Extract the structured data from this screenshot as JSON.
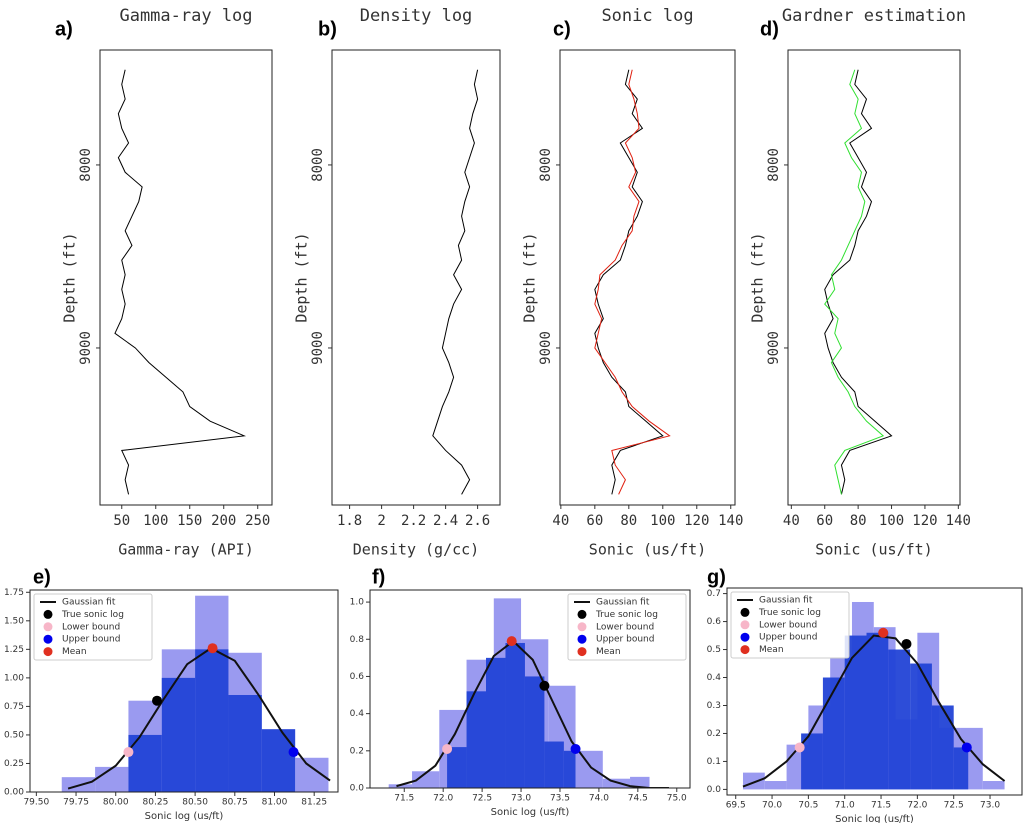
{
  "chart_data": [
    {
      "type": "line",
      "label": "a)",
      "title": "Gamma-ray log",
      "x_label": "Gamma-ray (API)",
      "y_label": "Depth (ft)",
      "xlim": [
        18,
        271
      ],
      "xticks": [
        50,
        100,
        150,
        200,
        250
      ],
      "ylim": [
        9858,
        7372
      ],
      "yticks": [
        8000,
        9000
      ],
      "y": [
        7480,
        7560,
        7640,
        7720,
        7800,
        7880,
        7960,
        8040,
        8120,
        8200,
        8280,
        8360,
        8440,
        8520,
        8600,
        8680,
        8760,
        8840,
        8920,
        9000,
        9080,
        9160,
        9240,
        9320,
        9400,
        9480,
        9560,
        9640,
        9720,
        9800
      ],
      "series": [
        {
          "color": "#000000",
          "values": [
            55,
            50,
            55,
            45,
            50,
            60,
            45,
            55,
            80,
            75,
            65,
            55,
            65,
            50,
            55,
            50,
            55,
            50,
            40,
            70,
            90,
            115,
            140,
            150,
            180,
            230,
            50,
            60,
            55,
            60
          ]
        }
      ]
    },
    {
      "type": "line",
      "label": "b)",
      "title": "Density log",
      "x_label": "Density (g/cc)",
      "y_label": "Depth (ft)",
      "xlim": [
        1.69,
        2.74
      ],
      "xticks": [
        1.8,
        2,
        2.2,
        2.4,
        2.6
      ],
      "ylim": [
        9858,
        7372
      ],
      "yticks": [
        8000,
        9000
      ],
      "y": [
        7480,
        7560,
        7640,
        7720,
        7800,
        7880,
        7960,
        8040,
        8120,
        8200,
        8280,
        8360,
        8440,
        8520,
        8600,
        8680,
        8760,
        8840,
        8920,
        9000,
        9080,
        9160,
        9240,
        9320,
        9400,
        9480,
        9560,
        9640,
        9720,
        9800
      ],
      "series": [
        {
          "color": "#000000",
          "values": [
            2.6,
            2.58,
            2.6,
            2.57,
            2.55,
            2.58,
            2.55,
            2.52,
            2.55,
            2.52,
            2.5,
            2.52,
            2.48,
            2.5,
            2.45,
            2.5,
            2.45,
            2.42,
            2.4,
            2.38,
            2.42,
            2.45,
            2.42,
            2.38,
            2.35,
            2.32,
            2.4,
            2.5,
            2.55,
            2.5
          ]
        }
      ]
    },
    {
      "type": "line",
      "label": "c)",
      "title": "Sonic log",
      "x_label": "Sonic (us/ft)",
      "y_label": "Depth (ft)",
      "xlim": [
        39.5,
        142.5
      ],
      "xticks": [
        40,
        60,
        80,
        100,
        120,
        140
      ],
      "ylim": [
        9858,
        7372
      ],
      "yticks": [
        8000,
        9000
      ],
      "y": [
        7480,
        7560,
        7640,
        7720,
        7800,
        7880,
        7960,
        8040,
        8120,
        8200,
        8280,
        8360,
        8440,
        8520,
        8600,
        8680,
        8760,
        8840,
        8920,
        9000,
        9080,
        9160,
        9240,
        9320,
        9400,
        9480,
        9560,
        9640,
        9720,
        9800
      ],
      "series": [
        {
          "color": "#000000",
          "values": [
            80,
            78,
            85,
            82,
            88,
            75,
            80,
            85,
            82,
            88,
            85,
            80,
            78,
            75,
            65,
            60,
            62,
            65,
            60,
            62,
            65,
            70,
            78,
            80,
            90,
            100,
            75,
            70,
            72,
            70
          ]
        },
        {
          "color": "#e02010",
          "values": [
            82,
            80,
            83,
            85,
            86,
            78,
            82,
            84,
            80,
            86,
            83,
            82,
            76,
            72,
            63,
            62,
            60,
            64,
            62,
            60,
            66,
            72,
            76,
            82,
            92,
            104,
            70,
            72,
            78,
            74
          ]
        }
      ]
    },
    {
      "type": "line",
      "label": "d)",
      "title": "Gardner estimation",
      "x_label": "Sonic (us/ft)",
      "y_label": "Depth (ft)",
      "xlim": [
        38,
        141
      ],
      "xticks": [
        40,
        60,
        80,
        100,
        120,
        140
      ],
      "ylim": [
        9858,
        7372
      ],
      "yticks": [
        8000,
        9000
      ],
      "y": [
        7480,
        7560,
        7640,
        7720,
        7800,
        7880,
        7960,
        8040,
        8120,
        8200,
        8280,
        8360,
        8440,
        8520,
        8600,
        8680,
        8760,
        8840,
        8920,
        9000,
        9080,
        9160,
        9240,
        9320,
        9400,
        9480,
        9560,
        9640,
        9720,
        9800
      ],
      "series": [
        {
          "color": "#000000",
          "values": [
            80,
            78,
            85,
            82,
            88,
            75,
            80,
            85,
            82,
            88,
            85,
            80,
            78,
            75,
            65,
            60,
            62,
            65,
            60,
            62,
            65,
            70,
            78,
            80,
            90,
            100,
            75,
            70,
            72,
            70
          ]
        },
        {
          "color": "#30e030",
          "values": [
            78,
            75,
            80,
            78,
            82,
            72,
            76,
            82,
            80,
            84,
            82,
            78,
            74,
            70,
            64,
            66,
            60,
            68,
            66,
            70,
            64,
            68,
            74,
            78,
            85,
            95,
            72,
            66,
            68,
            70
          ]
        }
      ]
    },
    {
      "type": "histogram",
      "label": "e)",
      "x_label": "Sonic log (us/ft)",
      "legend": "upper left",
      "xlim": [
        79.46,
        81.4
      ],
      "xticks": [
        {
          "value": 79.5,
          "label": "79.50"
        },
        79.75,
        {
          "value": 80,
          "label": "80.00"
        },
        80.25,
        {
          "value": 80.5,
          "label": "80.50"
        },
        80.75,
        {
          "value": 81,
          "label": "81.00"
        },
        81.25
      ],
      "ylim": [
        0,
        1.77
      ],
      "yticks": [
        {
          "value": 0,
          "label": "0.00"
        },
        0.25,
        {
          "value": 0.5,
          "label": "0.50"
        },
        0.75,
        {
          "value": 1,
          "label": "1.00"
        },
        1.25,
        {
          "value": 1.5,
          "label": "1.50"
        },
        1.75
      ],
      "histograms": [
        {
          "color": "#9a9af0",
          "bins": [
            79.66,
            79.87,
            80.08,
            80.29,
            80.5,
            80.71,
            80.92,
            81.13,
            81.34
          ],
          "counts": [
            0.13,
            0.22,
            0.8,
            1.25,
            1.72,
            1.22,
            0.55,
            0.3
          ]
        },
        {
          "color": "#2243d6",
          "bins": [
            80.08,
            80.29,
            80.5,
            80.71,
            80.92,
            81.13
          ],
          "counts": [
            0.5,
            1.0,
            1.25,
            0.85,
            0.55
          ]
        }
      ],
      "fit": {
        "name": "Gaussian fit",
        "color": "#111111",
        "x": [
          79.7,
          79.85,
          80.0,
          80.15,
          80.3,
          80.45,
          80.6,
          80.75,
          80.9,
          81.05,
          81.2,
          81.35
        ],
        "values": [
          0.03,
          0.09,
          0.23,
          0.48,
          0.81,
          1.12,
          1.26,
          1.15,
          0.85,
          0.52,
          0.25,
          0.1
        ]
      },
      "points": [
        {
          "name": "True sonic log",
          "color": "#000000",
          "x": 80.26,
          "value": 0.8
        },
        {
          "name": "Lower bound",
          "color": "#f7b6c8",
          "x": 80.08,
          "value": 0.35
        },
        {
          "name": "Upper bound",
          "color": "#0000ee",
          "x": 81.12,
          "value": 0.35
        },
        {
          "name": "Mean",
          "color": "#e03020",
          "x": 80.61,
          "value": 1.26
        }
      ]
    },
    {
      "type": "histogram",
      "label": "f)",
      "x_label": "Sonic log (us/ft)",
      "legend": "upper right",
      "xlim": [
        71.06,
        75.17
      ],
      "xticks": [
        71.5,
        {
          "value": 72,
          "label": "72.0"
        },
        72.5,
        {
          "value": 73,
          "label": "73.0"
        },
        73.5,
        {
          "value": 74,
          "label": "74.0"
        },
        74.5,
        {
          "value": 75,
          "label": "75.0"
        }
      ],
      "ylim": [
        0,
        1.065
      ],
      "yticks": [
        {
          "value": 0,
          "label": "0.0"
        },
        0.2,
        0.4,
        0.6,
        0.8,
        {
          "value": 1,
          "label": "1.0"
        }
      ],
      "histograms": [
        {
          "color": "#9a9af0",
          "bins": [
            71.3,
            71.6,
            71.95,
            72.3,
            72.65,
            73.0,
            73.35,
            73.7,
            74.05,
            74.4,
            74.65
          ],
          "counts": [
            0.02,
            0.09,
            0.42,
            0.69,
            1.02,
            0.8,
            0.55,
            0.2,
            0.05,
            0.06
          ]
        },
        {
          "color": "#2243d6",
          "bins": [
            72.05,
            72.3,
            72.55,
            72.8,
            73.05,
            73.3,
            73.55,
            73.7
          ],
          "counts": [
            0.22,
            0.52,
            0.7,
            0.78,
            0.6,
            0.25,
            0.2
          ]
        }
      ],
      "fit": {
        "name": "Gaussian fit",
        "color": "#111111",
        "x": [
          71.4,
          71.65,
          71.9,
          72.15,
          72.4,
          72.65,
          72.9,
          73.15,
          73.4,
          73.65,
          73.9,
          74.15,
          74.4,
          74.65,
          74.9
        ],
        "values": [
          0.01,
          0.04,
          0.12,
          0.29,
          0.51,
          0.71,
          0.79,
          0.69,
          0.47,
          0.25,
          0.11,
          0.04,
          0.01,
          0,
          0
        ]
      },
      "points": [
        {
          "name": "True sonic log",
          "color": "#000000",
          "x": 73.3,
          "value": 0.55
        },
        {
          "name": "Lower bound",
          "color": "#f7b6c8",
          "x": 72.05,
          "value": 0.21
        },
        {
          "name": "Upper bound",
          "color": "#0000ee",
          "x": 73.7,
          "value": 0.21
        },
        {
          "name": "Mean",
          "color": "#e03020",
          "x": 72.88,
          "value": 0.79
        }
      ]
    },
    {
      "type": "histogram",
      "label": "g)",
      "x_label": "Sonic log (us/ft)",
      "legend": "upper left",
      "xlim": [
        69.38,
        73.44
      ],
      "xticks": [
        69.5,
        {
          "value": 70,
          "label": "70.0"
        },
        70.5,
        {
          "value": 71,
          "label": "71.0"
        },
        71.5,
        {
          "value": 72,
          "label": "72.0"
        },
        72.5,
        {
          "value": 73,
          "label": "73.0"
        }
      ],
      "ylim": [
        -0.02,
        0.72
      ],
      "yticks": [
        {
          "value": 0,
          "label": "0.0"
        },
        0.1,
        0.2,
        0.3,
        0.4,
        0.5,
        0.6,
        0.7
      ],
      "histograms": [
        {
          "color": "#9a9af0",
          "bins": [
            69.6,
            69.9,
            70.2,
            70.5,
            70.8,
            71.1,
            71.4,
            71.7,
            72.0,
            72.3,
            72.6,
            72.9,
            73.2
          ],
          "counts": [
            0.06,
            0.03,
            0.16,
            0.3,
            0.47,
            0.67,
            0.58,
            0.25,
            0.56,
            0.22,
            0.22,
            0.03
          ]
        },
        {
          "color": "#2243d6",
          "bins": [
            70.4,
            70.7,
            71.0,
            71.3,
            71.6,
            71.9,
            72.2,
            72.5,
            72.7
          ],
          "counts": [
            0.2,
            0.4,
            0.55,
            0.56,
            0.5,
            0.45,
            0.3,
            0.15
          ]
        }
      ],
      "fit": {
        "name": "Gaussian fit",
        "color": "#111111",
        "x": [
          69.6,
          69.9,
          70.2,
          70.5,
          70.8,
          71.1,
          71.4,
          71.7,
          72.0,
          72.3,
          72.6,
          72.9,
          73.2
        ],
        "values": [
          0.01,
          0.04,
          0.1,
          0.19,
          0.33,
          0.47,
          0.55,
          0.54,
          0.45,
          0.31,
          0.18,
          0.09,
          0.03
        ]
      },
      "points": [
        {
          "name": "True sonic log",
          "color": "#000000",
          "x": 71.85,
          "value": 0.52
        },
        {
          "name": "Lower bound",
          "color": "#f7b6c8",
          "x": 70.38,
          "value": 0.15
        },
        {
          "name": "Upper bound",
          "color": "#0000ee",
          "x": 72.68,
          "value": 0.15
        },
        {
          "name": "Mean",
          "color": "#e03020",
          "x": 71.53,
          "value": 0.56
        }
      ]
    }
  ]
}
